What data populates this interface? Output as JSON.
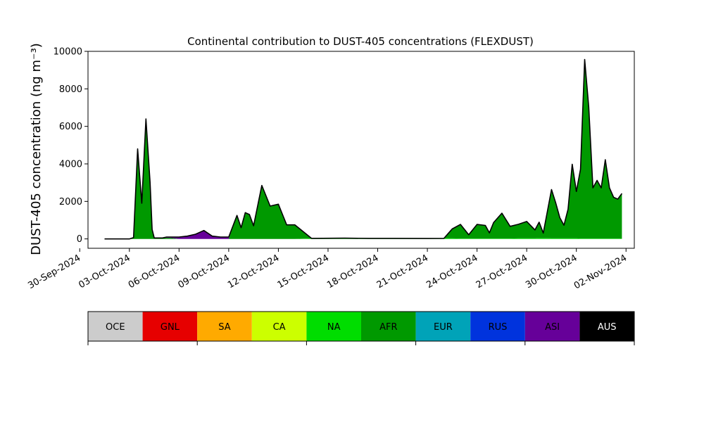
{
  "chart_data": {
    "type": "area",
    "stacked": true,
    "title": "Continental contribution to DUST-405 concentrations (FLEXDUST)",
    "ylabel": "DUST-405 concentration (ng m⁻³)",
    "xlabel": "",
    "ylim": [
      -500,
      10000
    ],
    "xlim": [
      "2024-09-30T12:00",
      "2024-11-02T12:00"
    ],
    "grid": false,
    "yticks": [
      0,
      2000,
      4000,
      6000,
      8000,
      10000
    ],
    "ytick_labels": [
      "0",
      "2000",
      "4000",
      "6000",
      "8000",
      "10000"
    ],
    "xticks": [
      "2024-09-30",
      "2024-10-03",
      "2024-10-06",
      "2024-10-09",
      "2024-10-12",
      "2024-10-15",
      "2024-10-18",
      "2024-10-21",
      "2024-10-24",
      "2024-10-27",
      "2024-10-30",
      "2024-11-02"
    ],
    "xtick_labels": [
      "30-Sep-2024",
      "03-Oct-2024",
      "06-Oct-2024",
      "09-Oct-2024",
      "12-Oct-2024",
      "15-Oct-2024",
      "18-Oct-2024",
      "21-Oct-2024",
      "24-Oct-2024",
      "27-Oct-2024",
      "30-Oct-2024",
      "02-Nov-2024"
    ],
    "total_line_color": "#000000",
    "legend": {
      "placement": "bottom",
      "entries": [
        {
          "name": "OCE",
          "color": "#cccccc"
        },
        {
          "name": "GNL",
          "color": "#e60000"
        },
        {
          "name": "SA",
          "color": "#ffaa00"
        },
        {
          "name": "CA",
          "color": "#ccff00"
        },
        {
          "name": "NA",
          "color": "#00dd00"
        },
        {
          "name": "AFR",
          "color": "#009900"
        },
        {
          "name": "EUR",
          "color": "#00a3b8"
        },
        {
          "name": "RUS",
          "color": "#0033dd"
        },
        {
          "name": "ASI",
          "color": "#660099"
        },
        {
          "name": "AUS",
          "color": "#000000"
        }
      ]
    },
    "x": [
      "2024-10-01T12:00",
      "2024-10-02T00:00",
      "2024-10-02T06:00",
      "2024-10-02T12:00",
      "2024-10-03T00:00",
      "2024-10-03T06:00",
      "2024-10-03T12:00",
      "2024-10-03T18:00",
      "2024-10-04T00:00",
      "2024-10-04T06:00",
      "2024-10-04T09:00",
      "2024-10-04T12:00",
      "2024-10-04T15:00",
      "2024-10-04T18:00",
      "2024-10-05T00:00",
      "2024-10-05T06:00",
      "2024-10-05T12:00",
      "2024-10-06T00:00",
      "2024-10-06T12:00",
      "2024-10-07T00:00",
      "2024-10-07T12:00",
      "2024-10-08T00:00",
      "2024-10-08T12:00",
      "2024-10-09T00:00",
      "2024-10-09T12:00",
      "2024-10-09T18:00",
      "2024-10-10T00:00",
      "2024-10-10T06:00",
      "2024-10-10T12:00",
      "2024-10-11T00:00",
      "2024-10-11T12:00",
      "2024-10-12T00:00",
      "2024-10-12T06:00",
      "2024-10-12T12:00",
      "2024-10-13T00:00",
      "2024-10-14T00:00",
      "2024-10-16T00:00",
      "2024-10-17T12:00",
      "2024-10-19T00:00",
      "2024-10-21T00:00",
      "2024-10-22T00:00",
      "2024-10-22T12:00",
      "2024-10-23T00:00",
      "2024-10-23T12:00",
      "2024-10-24T00:00",
      "2024-10-24T12:00",
      "2024-10-24T18:00",
      "2024-10-25T00:00",
      "2024-10-25T12:00",
      "2024-10-26T00:00",
      "2024-10-26T12:00",
      "2024-10-27T00:00",
      "2024-10-27T12:00",
      "2024-10-27T18:00",
      "2024-10-28T00:00",
      "2024-10-28T12:00",
      "2024-10-28T18:00",
      "2024-10-29T00:00",
      "2024-10-29T06:00",
      "2024-10-29T12:00",
      "2024-10-29T18:00",
      "2024-10-30T00:00",
      "2024-10-30T06:00",
      "2024-10-30T12:00",
      "2024-10-30T18:00",
      "2024-10-31T00:00",
      "2024-10-31T06:00",
      "2024-10-31T12:00",
      "2024-10-31T18:00",
      "2024-11-01T00:00",
      "2024-11-01T06:00",
      "2024-11-01T12:00",
      "2024-11-01T18:00"
    ],
    "series": [
      {
        "name": "NA",
        "values": [
          0,
          0,
          0,
          0,
          0,
          0,
          0,
          0,
          0,
          0,
          0,
          0,
          0,
          0,
          0,
          0,
          0,
          0,
          0,
          0,
          0,
          0,
          0,
          0,
          0,
          0,
          0,
          0,
          0,
          0,
          0,
          0,
          0,
          0,
          0,
          30,
          40,
          30,
          30,
          20,
          30,
          30,
          20,
          20,
          20,
          20,
          20,
          20,
          20,
          20,
          30,
          30,
          30,
          40,
          40,
          30,
          30,
          30,
          30,
          30,
          30,
          30,
          20,
          20,
          20,
          20,
          20,
          20,
          20,
          20,
          20,
          20,
          20
        ]
      },
      {
        "name": "AFR",
        "values": [
          0,
          0,
          0,
          0,
          0,
          50,
          4800,
          1900,
          6400,
          3000,
          500,
          50,
          50,
          50,
          50,
          50,
          50,
          0,
          0,
          0,
          0,
          0,
          0,
          0,
          1250,
          600,
          1400,
          1300,
          700,
          2850,
          1750,
          1850,
          1300,
          750,
          750,
          0,
          0,
          0,
          0,
          0,
          0,
          500,
          750,
          200,
          750,
          700,
          300,
          850,
          1350,
          650,
          750,
          900,
          450,
          850,
          270,
          2600,
          1900,
          1100,
          700,
          1550,
          3950,
          2500,
          3700,
          9550,
          7000,
          2700,
          3100,
          2700,
          4200,
          2700,
          2200,
          2100,
          2400
        ]
      },
      {
        "name": "ASI",
        "values": [
          0,
          0,
          0,
          0,
          0,
          20,
          0,
          0,
          0,
          0,
          0,
          0,
          0,
          0,
          0,
          50,
          50,
          100,
          150,
          250,
          450,
          150,
          100,
          100,
          0,
          0,
          0,
          0,
          0,
          0,
          0,
          0,
          0,
          0,
          0,
          0,
          0,
          0,
          0,
          0,
          0,
          0,
          0,
          0,
          0,
          0,
          0,
          0,
          0,
          0,
          0,
          0,
          0,
          0,
          0,
          0,
          0,
          0,
          0,
          0,
          0,
          0,
          0,
          0,
          0,
          0,
          0,
          0,
          0,
          0,
          0,
          0,
          0
        ]
      },
      {
        "name": "RUS",
        "values": [
          0,
          0,
          0,
          0,
          0,
          0,
          0,
          0,
          0,
          0,
          0,
          0,
          0,
          0,
          0,
          0,
          0,
          0,
          0,
          0,
          0,
          0,
          0,
          0,
          0,
          0,
          0,
          0,
          0,
          0,
          0,
          0,
          0,
          0,
          0,
          0,
          0,
          0,
          0,
          0,
          0,
          0,
          0,
          0,
          0,
          0,
          0,
          0,
          0,
          0,
          0,
          0,
          0,
          0,
          0,
          0,
          0,
          0,
          0,
          0,
          0,
          0,
          0,
          0,
          0,
          0,
          0,
          0,
          0,
          0,
          0,
          0,
          0
        ]
      }
    ]
  }
}
